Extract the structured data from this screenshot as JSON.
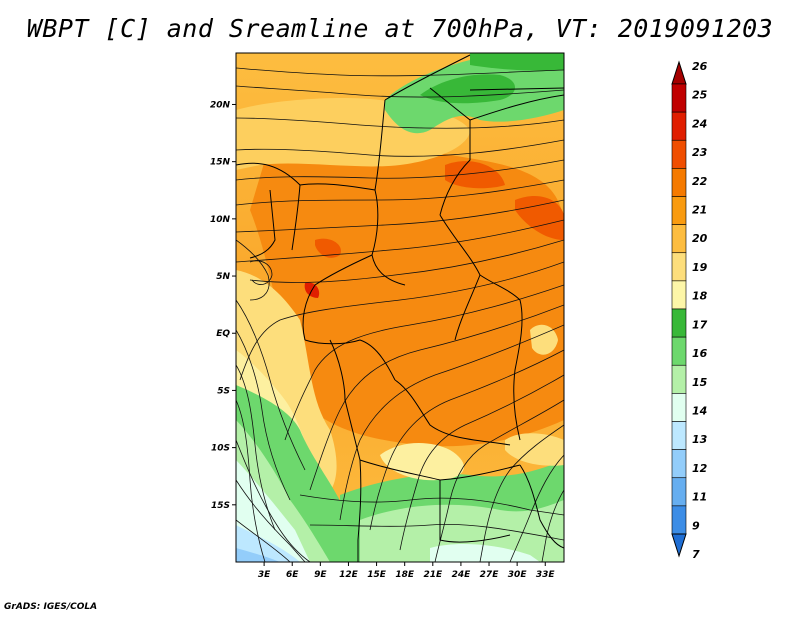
{
  "title": "WBPT [C] and Sreamline at 700hPa, VT: 2019091203",
  "footer": "GrADS: IGES/COLA",
  "map": {
    "lat_labels": [
      "20N",
      "15N",
      "10N",
      "5N",
      "EQ",
      "5S",
      "10S",
      "15S"
    ],
    "lon_labels": [
      "3E",
      "6E",
      "9E",
      "12E",
      "15E",
      "18E",
      "21E",
      "24E",
      "27E",
      "30E",
      "33E"
    ],
    "lat_values": [
      20,
      15,
      10,
      5,
      0,
      -5,
      -10,
      -15
    ],
    "lon_values": [
      3,
      6,
      9,
      12,
      15,
      18,
      21,
      24,
      27,
      30,
      33
    ],
    "lon_range": [
      0,
      35
    ],
    "lat_range": [
      -20,
      24.5
    ]
  },
  "colorbar": {
    "labels": [
      "26",
      "25",
      "24",
      "23",
      "22",
      "21",
      "20",
      "19",
      "18",
      "17",
      "16",
      "15",
      "14",
      "13",
      "12",
      "11",
      "9",
      "7"
    ],
    "colors": [
      "#a50000",
      "#c00000",
      "#e01e00",
      "#f04e00",
      "#f57a00",
      "#f99b10",
      "#fdbd40",
      "#fdde7c",
      "#fdf6a8",
      "#38b838",
      "#6dd86d",
      "#b4f0a8",
      "#e1fff0",
      "#bde8ff",
      "#93cdfa",
      "#66aef0",
      "#3c8de6",
      "#1f6ed4"
    ]
  }
}
